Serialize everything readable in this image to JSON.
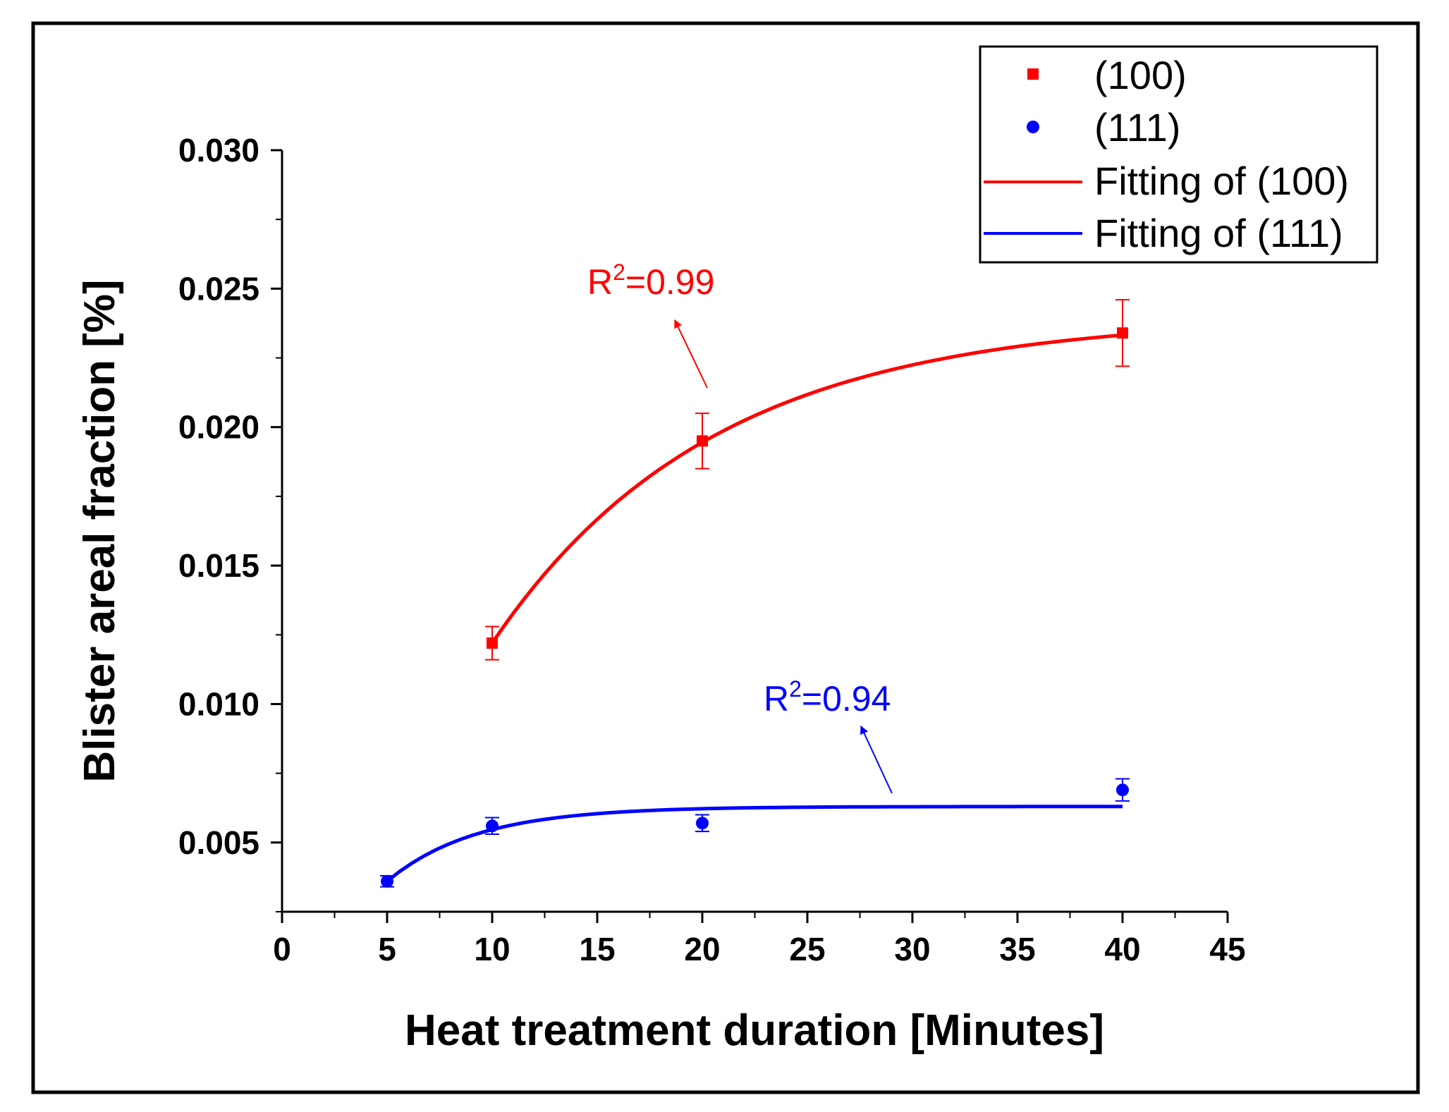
{
  "chart_data": {
    "type": "scatter",
    "xlabel": "Heat treatment duration [Minutes]",
    "ylabel": "Blister areal fraction [%]",
    "xlim": [
      0,
      45
    ],
    "ylim": [
      0.0025,
      0.03
    ],
    "xticks": [
      "0",
      "5",
      "10",
      "15",
      "20",
      "25",
      "30",
      "35",
      "40",
      "45"
    ],
    "xtick_values": [
      0,
      5,
      10,
      15,
      20,
      25,
      30,
      35,
      40,
      45
    ],
    "yticks": [
      "0.005",
      "0.010",
      "0.015",
      "0.020",
      "0.025",
      "0.030"
    ],
    "ytick_values": [
      0.005,
      0.01,
      0.015,
      0.02,
      0.025,
      0.03
    ],
    "series": [
      {
        "name": "(100)",
        "marker": "square",
        "color": "#ff0000",
        "x": [
          10,
          20,
          40
        ],
        "y": [
          0.0122,
          0.0195,
          0.0234
        ],
        "err": [
          0.0006,
          0.001,
          0.0012
        ]
      },
      {
        "name": "(111)",
        "marker": "circle",
        "color": "#0000ff",
        "x": [
          5,
          10,
          20,
          40
        ],
        "y": [
          0.0036,
          0.0056,
          0.0057,
          0.0069
        ],
        "err": [
          0.0002,
          0.0003,
          0.0003,
          0.0004
        ]
      }
    ],
    "fits": [
      {
        "name": "Fitting of (100)",
        "color": "#ff0000",
        "model": "exponential",
        "x_range": [
          10,
          40
        ],
        "y0": 0.0122,
        "ymax": 0.024,
        "k": 0.0953
      },
      {
        "name": "Fitting of (111)",
        "color": "#0000ff",
        "model": "exponential",
        "x_range": [
          5,
          40
        ],
        "y0": 0.0036,
        "ymax": 0.0063,
        "k": 0.235
      }
    ],
    "legend": {
      "position": "top-right",
      "entries": [
        "(100)",
        "(111)",
        "Fitting of (100)",
        "Fitting of (111)"
      ]
    },
    "annotations": [
      {
        "label": "R",
        "superscript": "2",
        "value": "=0.99",
        "color": "#ff0000"
      },
      {
        "label": "R",
        "superscript": "2",
        "value": "=0.94",
        "color": "#0000ff"
      }
    ]
  }
}
